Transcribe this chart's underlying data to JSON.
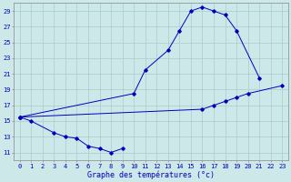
{
  "xlabel": "Graphe des températures (°c)",
  "background_color": "#cce8e8",
  "grid_color": "#aacccc",
  "line_color": "#0000bb",
  "xlim": [
    -0.5,
    23.5
  ],
  "ylim": [
    10.0,
    30.0
  ],
  "yticks": [
    11,
    13,
    15,
    17,
    19,
    21,
    23,
    25,
    27,
    29
  ],
  "s1x": [
    0,
    1,
    3,
    4,
    5,
    6,
    7,
    8,
    9
  ],
  "s1y": [
    15.5,
    15.0,
    13.5,
    13.0,
    12.8,
    11.8,
    11.5,
    11.0,
    11.5
  ],
  "s2x": [
    0,
    10,
    11,
    13,
    14,
    15,
    16,
    17,
    18,
    19,
    21
  ],
  "s2y": [
    15.5,
    18.5,
    21.5,
    24.0,
    26.5,
    29.0,
    29.5,
    29.0,
    28.5,
    26.5,
    20.5
  ],
  "s3x": [
    0,
    16,
    17,
    18,
    19,
    20,
    23
  ],
  "s3y": [
    15.5,
    16.5,
    17.0,
    17.5,
    18.0,
    18.5,
    19.5
  ],
  "tick_fontsize": 5.0,
  "xlabel_fontsize": 6.0
}
